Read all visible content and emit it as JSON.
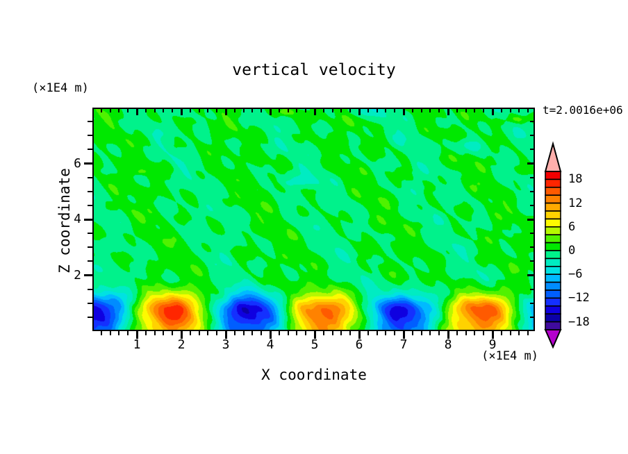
{
  "page": {
    "background": "#ffffff"
  },
  "title": "vertical velocity",
  "annotations": {
    "time_label": "t=2.0016e+06"
  },
  "x_axis": {
    "title": "X coordinate",
    "unit_label": "(×1E4 m)",
    "range": [
      0,
      9.95
    ],
    "major_ticks": [
      1,
      2,
      3,
      4,
      5,
      6,
      7,
      8,
      9
    ],
    "minor_tick_step": 0.2
  },
  "z_axis": {
    "title": "Z coordinate",
    "unit_label": "(×1E4 m)",
    "range": [
      0,
      8
    ],
    "major_ticks": [
      2,
      4,
      6
    ],
    "minor_tick_step": 0.5
  },
  "colorbar": {
    "tick_labels": [
      "18",
      "12",
      "6",
      "0",
      "−6",
      "−12",
      "−18"
    ],
    "tick_values": [
      18,
      12,
      6,
      0,
      -6,
      -12,
      -18
    ],
    "level_min": -20,
    "level_max": 20,
    "level_step": 2,
    "colors_top_to_bottom": [
      "#f20000",
      "#ff2600",
      "#ff5a00",
      "#ff8200",
      "#ffaa00",
      "#ffd200",
      "#fdfa00",
      "#b5f800",
      "#50f200",
      "#00e800",
      "#00f28b",
      "#00ecc2",
      "#00e2e2",
      "#00baff",
      "#008cff",
      "#005eff",
      "#1430ff",
      "#0f00e0",
      "#0b00a8",
      "#400b9e"
    ],
    "above_range_color": "#ffafac",
    "below_range_color": "#b400cc",
    "outline_color": "#000000"
  },
  "chart_data": {
    "type": "filled_contour",
    "title": "vertical velocity",
    "xlabel": "X coordinate (×1E4 m)",
    "ylabel": "Z coordinate (×1E4 m)",
    "time_annotation": "t=2.0016e+06",
    "x_range": [
      0,
      9.95
    ],
    "z_range": [
      0,
      8
    ],
    "band_interval": 2,
    "value_range_shown": [
      -20,
      20
    ],
    "field_summary": "Mostly near-zero vertical velocity (bands -2..0 and 0..2, two shades of green) above z≈2, with sparse ±2..6 speckles; below z≈2 a row of alternating strong convective cells: downdrafts (blue, to -18) and updrafts (orange/red, to +16) with horizontal spacing ≈3.5×1E4 m.",
    "features": [
      {
        "kind": "downdraft",
        "x_center": 0.1,
        "z_center": 0.8,
        "peak_band": [
          -18,
          -16
        ]
      },
      {
        "kind": "updraft",
        "x_center": 1.8,
        "z_center": 0.8,
        "peak_band": [
          14,
          16
        ]
      },
      {
        "kind": "downdraft",
        "x_center": 3.6,
        "z_center": 0.8,
        "peak_band": [
          -16,
          -14
        ]
      },
      {
        "kind": "updraft",
        "x_center": 5.3,
        "z_center": 0.8,
        "peak_band": [
          12,
          14
        ]
      },
      {
        "kind": "downdraft",
        "x_center": 7.0,
        "z_center": 0.8,
        "peak_band": [
          -16,
          -14
        ]
      },
      {
        "kind": "updraft",
        "x_center": 8.7,
        "z_center": 0.8,
        "peak_band": [
          12,
          14
        ]
      },
      {
        "kind": "downdraft",
        "x_center": 9.9,
        "z_center": 0.8,
        "peak_band": [
          -14,
          -12
        ]
      },
      {
        "kind": "background",
        "description": "weak fluctuations, mostly |w|<2, above z≈2"
      }
    ],
    "field_model": {
      "wave": {
        "period": 3.5,
        "base_amp": 15.2,
        "amp_mod": 1.4,
        "amp_mod_period": 10,
        "amp_mod_phase": 1.1,
        "z_peak": 0.78,
        "z_sigma": 0.56,
        "bottom_frac": 0.72
      },
      "noise_terms": [
        {
          "a": 0.9,
          "fx": 0.38,
          "fz": 0.12,
          "p": 1.7
        },
        {
          "a": 0.75,
          "fx": 0.71,
          "fz": 0.45,
          "p": 4.0
        },
        {
          "a": 0.6,
          "fx": 1.12,
          "fz": -0.33,
          "p": 2.2
        },
        {
          "a": 0.45,
          "fx": 1.85,
          "fz": 0.9,
          "p": 5.1
        },
        {
          "a": 0.4,
          "fx": 0.26,
          "fz": 1.15,
          "p": 0.7
        },
        {
          "a": 0.3,
          "fx": 2.6,
          "fz": 1.7,
          "p": 3.3
        }
      ],
      "spots": [
        {
          "x": 4.35,
          "z": 7.85,
          "amp": 3.8,
          "sx": 0.2,
          "sz": 0.13
        },
        {
          "x": 9.6,
          "z": 7.6,
          "amp": 3.4,
          "sx": 0.28,
          "sz": 0.16
        },
        {
          "x": 8.35,
          "z": 6.65,
          "amp": -2.8,
          "sx": 0.5,
          "sz": 0.25
        },
        {
          "x": 4.55,
          "z": 5.35,
          "amp": -2.4,
          "sx": 0.55,
          "sz": 0.22
        },
        {
          "x": 1.05,
          "z": 5.7,
          "amp": 2.8,
          "sx": 0.16,
          "sz": 0.11
        },
        {
          "x": 6.1,
          "z": 7.9,
          "amp": -2.5,
          "sx": 0.4,
          "sz": 0.2
        }
      ]
    }
  }
}
